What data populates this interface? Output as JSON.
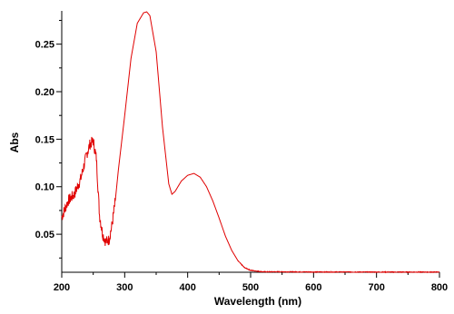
{
  "chart_data": {
    "type": "line",
    "title": "",
    "xlabel": "Wavelength (nm)",
    "ylabel": "Abs",
    "xlim": [
      200,
      800
    ],
    "ylim": [
      0.01,
      0.285
    ],
    "x_ticks": [
      200,
      300,
      400,
      500,
      600,
      700,
      800
    ],
    "y_ticks": [
      0.05,
      0.1,
      0.15,
      0.2,
      0.25
    ],
    "x_tick_labels": [
      "200",
      "300",
      "400",
      "500",
      "600",
      "700",
      "800"
    ],
    "y_tick_labels": [
      "0.05",
      "0.10",
      "0.15",
      "0.20",
      "0.25"
    ],
    "grid": false,
    "legend": "none",
    "series": [
      {
        "color": "#e00000",
        "x": [
          200,
          210,
          220,
          230,
          240,
          245,
          250,
          255,
          260,
          265,
          270,
          275,
          280,
          285,
          290,
          300,
          310,
          320,
          330,
          335,
          340,
          350,
          360,
          370,
          375,
          380,
          390,
          400,
          410,
          420,
          430,
          440,
          450,
          460,
          470,
          480,
          490,
          500,
          520,
          550,
          600,
          650,
          700,
          750,
          800
        ],
        "y": [
          0.068,
          0.085,
          0.092,
          0.108,
          0.135,
          0.145,
          0.148,
          0.13,
          0.07,
          0.05,
          0.042,
          0.044,
          0.06,
          0.085,
          0.118,
          0.175,
          0.235,
          0.272,
          0.283,
          0.284,
          0.28,
          0.242,
          0.163,
          0.103,
          0.092,
          0.095,
          0.106,
          0.112,
          0.114,
          0.11,
          0.1,
          0.085,
          0.067,
          0.048,
          0.033,
          0.022,
          0.015,
          0.012,
          0.0105,
          0.0105,
          0.0103,
          0.0103,
          0.0102,
          0.0102,
          0.0102
        ]
      }
    ]
  }
}
